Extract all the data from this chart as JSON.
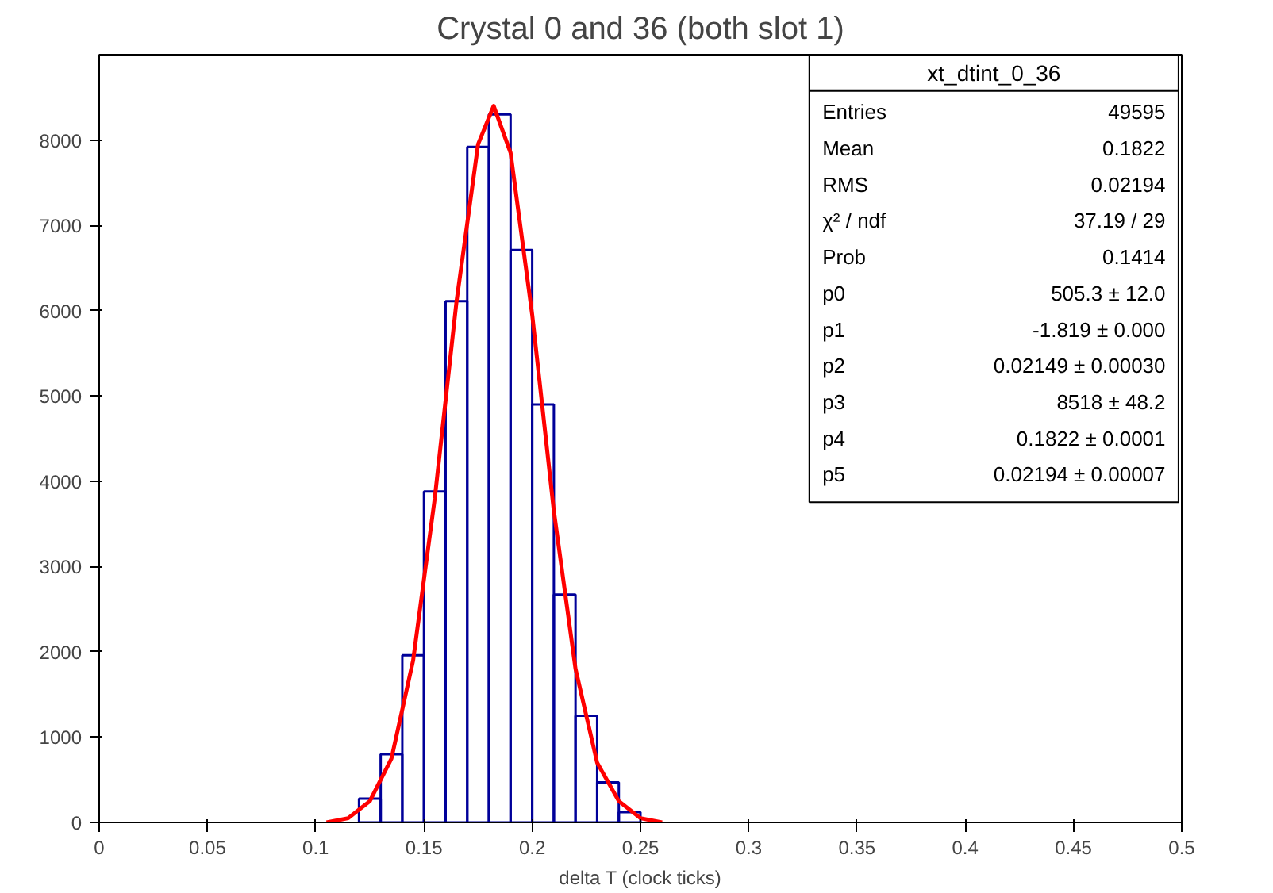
{
  "chart_data": {
    "type": "histogram",
    "title": "Crystal 0 and 36 (both slot 1)",
    "xlabel": "delta T (clock ticks)",
    "bins": [
      0.12,
      0.13,
      0.14,
      0.15,
      0.16,
      0.17,
      0.18,
      0.19,
      0.2,
      0.21,
      0.22,
      0.23,
      0.24,
      0.25
    ],
    "values": [
      280,
      800,
      1960,
      3880,
      6110,
      7920,
      8300,
      6710,
      4900,
      2670,
      1250,
      470,
      120
    ],
    "color": "#000099",
    "series": [
      {
        "type": "line",
        "color": "#ff0000",
        "x": [
          0.105,
          0.115,
          0.125,
          0.135,
          0.145,
          0.155,
          0.165,
          0.175,
          0.1822,
          0.19,
          0.2,
          0.21,
          0.22,
          0.23,
          0.24,
          0.25,
          0.26
        ],
        "values": [
          0,
          50,
          250,
          750,
          1900,
          3800,
          6100,
          7950,
          8400,
          7850,
          5950,
          3650,
          1800,
          700,
          250,
          50,
          0
        ]
      }
    ],
    "xlim": [
      0,
      0.5
    ],
    "ylim": [
      0,
      9000
    ],
    "xticks": [
      0,
      0.05,
      0.1,
      0.15,
      0.2,
      0.25,
      0.3,
      0.35,
      0.4,
      0.45,
      0.5
    ],
    "yticks": [
      0,
      1000,
      2000,
      3000,
      4000,
      5000,
      6000,
      7000,
      8000
    ],
    "grid": false,
    "annotations": [
      "xt_dtint_0_36",
      "Entries",
      "49595",
      "Mean",
      "0.1822",
      "RMS",
      "0.02194",
      "χ² / ndf",
      "37.19 / 29",
      "Prob",
      "0.1414",
      "p0",
      "505.3 ± 12.0",
      "p1",
      "-1.819 ± 0.000",
      "p2",
      "0.02149 ± 0.00030",
      "p3",
      "8518 ± 48.2",
      "p4",
      "0.1822 ± 0.0001",
      "p5",
      "0.02194 ± 0.00007"
    ]
  }
}
